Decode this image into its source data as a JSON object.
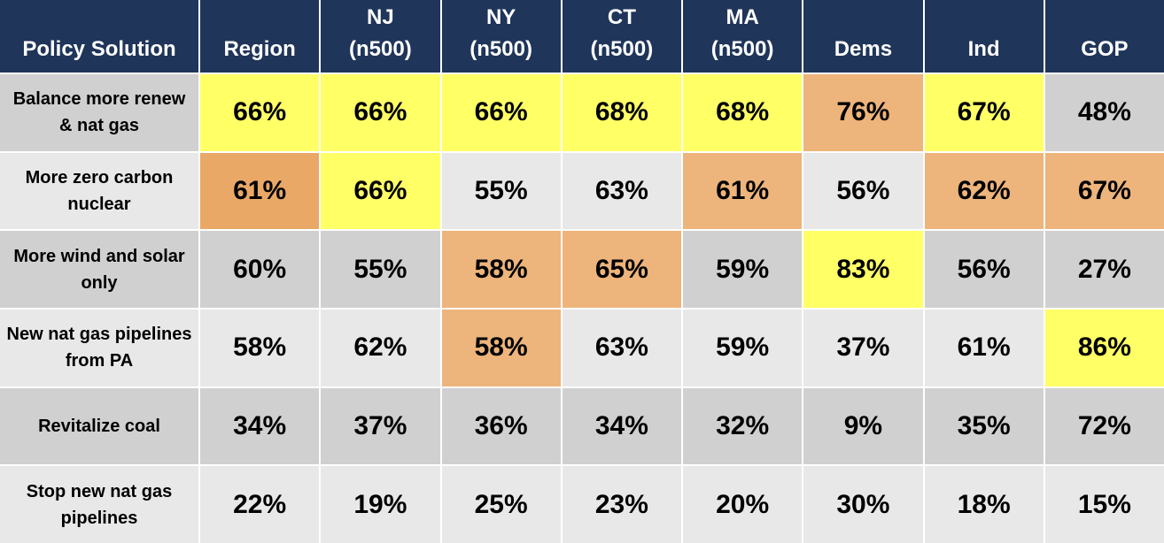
{
  "header": {
    "cells": [
      [
        "Policy Solution"
      ],
      [
        "Region"
      ],
      [
        "NJ",
        "(n500)"
      ],
      [
        "NY",
        "(n500)"
      ],
      [
        "CT",
        "(n500)"
      ],
      [
        "MA",
        "(n500)"
      ],
      [
        "Dems"
      ],
      [
        "Ind"
      ],
      [
        "GOP"
      ]
    ],
    "color": "#1f355a"
  },
  "rows": [
    {
      "label": [
        "Balance more renew",
        "& nat gas"
      ],
      "color": "#d0d0d0",
      "cells": [
        {
          "text": "66%",
          "color": "#ffff66"
        },
        {
          "text": "66%",
          "color": "#ffff66"
        },
        {
          "text": "66%",
          "color": "#ffff66"
        },
        {
          "text": "68%",
          "color": "#ffff66"
        },
        {
          "text": "68%",
          "color": "#ffff66"
        },
        {
          "text": "76%",
          "color": "#edb47c"
        },
        {
          "text": "67%",
          "color": "#ffff66"
        },
        {
          "text": "48%",
          "color": "#d0d0d0"
        }
      ]
    },
    {
      "label": [
        "More zero carbon",
        "nuclear"
      ],
      "color": "#e8e8e8",
      "cells": [
        {
          "text": "61%",
          "color": "#e9a866"
        },
        {
          "text": "66%",
          "color": "#ffff66"
        },
        {
          "text": "55%",
          "color": "#e8e8e8"
        },
        {
          "text": "63%",
          "color": "#e8e8e8"
        },
        {
          "text": "61%",
          "color": "#edb47c"
        },
        {
          "text": "56%",
          "color": "#e8e8e8"
        },
        {
          "text": "62%",
          "color": "#edb47c"
        },
        {
          "text": "67%",
          "color": "#edb47c"
        }
      ]
    },
    {
      "label": [
        "More wind and solar",
        "only"
      ],
      "color": "#d0d0d0",
      "cells": [
        {
          "text": "60%",
          "color": "#d0d0d0"
        },
        {
          "text": "55%",
          "color": "#d0d0d0"
        },
        {
          "text": "58%",
          "color": "#edb47c"
        },
        {
          "text": "65%",
          "color": "#edb47c"
        },
        {
          "text": "59%",
          "color": "#d0d0d0"
        },
        {
          "text": "83%",
          "color": "#ffff66"
        },
        {
          "text": "56%",
          "color": "#d0d0d0"
        },
        {
          "text": "27%",
          "color": "#d0d0d0"
        }
      ]
    },
    {
      "label": [
        "New nat gas pipelines",
        "from PA"
      ],
      "color": "#e8e8e8",
      "cells": [
        {
          "text": "58%",
          "color": "#e8e8e8"
        },
        {
          "text": "62%",
          "color": "#e8e8e8"
        },
        {
          "text": "58%",
          "color": "#edb47c"
        },
        {
          "text": "63%",
          "color": "#e8e8e8"
        },
        {
          "text": "59%",
          "color": "#e8e8e8"
        },
        {
          "text": "37%",
          "color": "#e8e8e8"
        },
        {
          "text": "61%",
          "color": "#e8e8e8"
        },
        {
          "text": "86%",
          "color": "#ffff66"
        }
      ]
    },
    {
      "label": [
        "Revitalize coal"
      ],
      "color": "#d0d0d0",
      "cells": [
        {
          "text": "34%",
          "color": "#d0d0d0"
        },
        {
          "text": "37%",
          "color": "#d0d0d0"
        },
        {
          "text": "36%",
          "color": "#d0d0d0"
        },
        {
          "text": "34%",
          "color": "#d0d0d0"
        },
        {
          "text": "32%",
          "color": "#d0d0d0"
        },
        {
          "text": "9%",
          "color": "#d0d0d0"
        },
        {
          "text": "35%",
          "color": "#d0d0d0"
        },
        {
          "text": "72%",
          "color": "#d0d0d0"
        }
      ]
    },
    {
      "label": [
        "Stop new nat gas",
        "pipelines"
      ],
      "color": "#e8e8e8",
      "cells": [
        {
          "text": "22%",
          "color": "#e8e8e8"
        },
        {
          "text": "19%",
          "color": "#e8e8e8"
        },
        {
          "text": "25%",
          "color": "#e8e8e8"
        },
        {
          "text": "23%",
          "color": "#e8e8e8"
        },
        {
          "text": "20%",
          "color": "#e8e8e8"
        },
        {
          "text": "30%",
          "color": "#e8e8e8"
        },
        {
          "text": "18%",
          "color": "#e8e8e8"
        },
        {
          "text": "15%",
          "color": "#e8e8e8"
        }
      ]
    }
  ]
}
